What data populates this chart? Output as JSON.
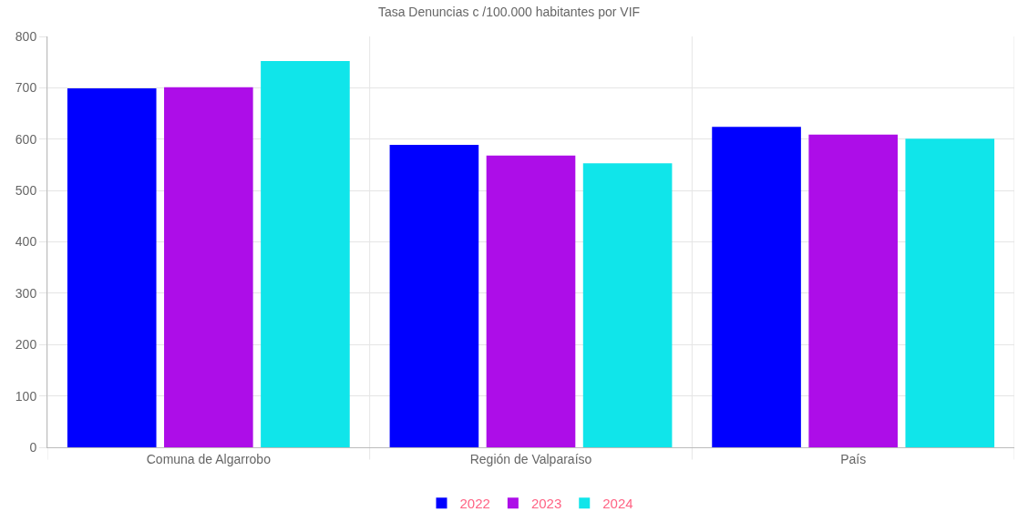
{
  "chart_data": {
    "type": "bar",
    "title": "Tasa Denuncias c /100.000 habitantes por VIF",
    "categories": [
      "Comuna de Algarrobo",
      "Región de Valparaíso",
      "País"
    ],
    "series": [
      {
        "name": "2022",
        "color": "#0000ff",
        "values": [
          699,
          589,
          624
        ]
      },
      {
        "name": "2023",
        "color": "#ad0de8",
        "values": [
          701,
          568,
          609
        ]
      },
      {
        "name": "2024",
        "color": "#10e5ea",
        "values": [
          752,
          553,
          601
        ]
      }
    ],
    "ylim": [
      0,
      800
    ],
    "yticks": [
      0,
      100,
      200,
      300,
      400,
      500,
      600,
      700,
      800
    ],
    "grid": true,
    "legend": "bottom"
  }
}
